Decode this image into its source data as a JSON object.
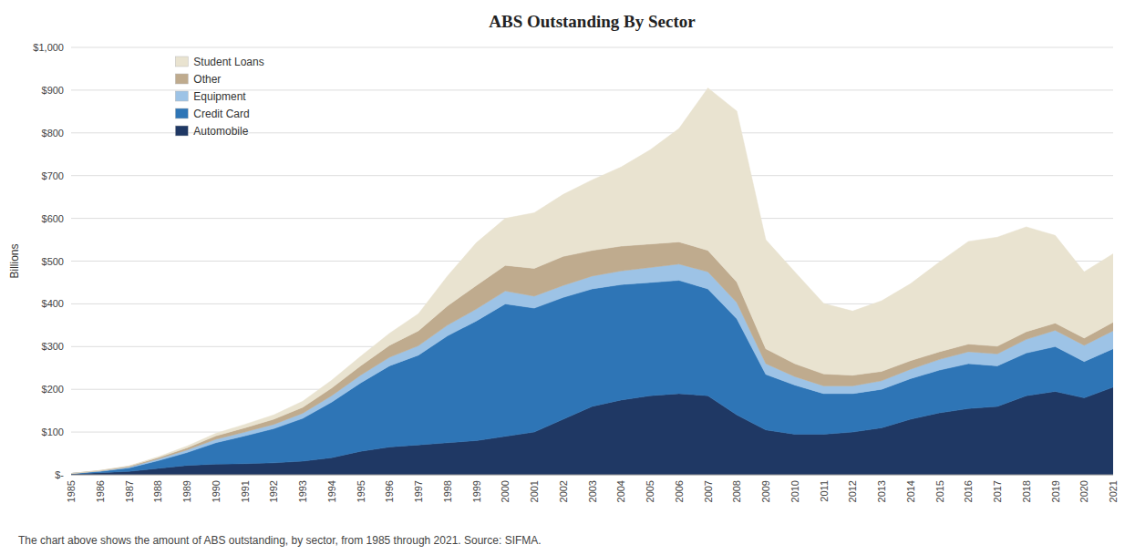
{
  "chart_data": {
    "type": "area",
    "stacked": true,
    "title": "ABS Outstanding By Sector",
    "subtitle": "The chart above shows the amount of ABS outstanding, by sector, from 1985 through 2021. Source: SIFMA.",
    "ylabel": "Billions",
    "x": [
      1985,
      1986,
      1987,
      1988,
      1989,
      1990,
      1991,
      1992,
      1993,
      1994,
      1995,
      1996,
      1997,
      1998,
      1999,
      2000,
      2001,
      2002,
      2003,
      2004,
      2005,
      2006,
      2007,
      2008,
      2009,
      2010,
      2011,
      2012,
      2013,
      2014,
      2015,
      2016,
      2017,
      2018,
      2019,
      2020,
      2021
    ],
    "series": [
      {
        "name": "Automobile",
        "color": "#1f3864",
        "values": [
          2,
          5,
          8,
          15,
          22,
          25,
          26,
          28,
          32,
          40,
          55,
          65,
          70,
          75,
          80,
          90,
          100,
          130,
          160,
          175,
          185,
          190,
          185,
          140,
          105,
          95,
          95,
          100,
          110,
          130,
          145,
          155,
          160,
          185,
          195,
          180,
          205
        ]
      },
      {
        "name": "Credit Card",
        "color": "#2e75b6",
        "values": [
          1,
          3,
          8,
          18,
          30,
          50,
          65,
          80,
          100,
          130,
          160,
          190,
          210,
          250,
          280,
          310,
          290,
          285,
          275,
          270,
          265,
          265,
          250,
          225,
          130,
          115,
          95,
          90,
          90,
          95,
          100,
          105,
          95,
          100,
          105,
          85,
          90
        ]
      },
      {
        "name": "Equipment",
        "color": "#9dc3e6",
        "values": [
          0,
          1,
          2,
          4,
          6,
          8,
          9,
          10,
          12,
          15,
          18,
          20,
          22,
          25,
          28,
          30,
          28,
          28,
          30,
          32,
          35,
          38,
          40,
          38,
          25,
          20,
          18,
          18,
          20,
          22,
          25,
          28,
          28,
          32,
          38,
          38,
          42
        ]
      },
      {
        "name": "Other",
        "color": "#bfab8e",
        "values": [
          0,
          1,
          2,
          3,
          5,
          8,
          10,
          12,
          14,
          18,
          22,
          28,
          35,
          45,
          55,
          60,
          65,
          68,
          60,
          58,
          55,
          52,
          50,
          48,
          35,
          30,
          28,
          25,
          22,
          20,
          18,
          18,
          18,
          18,
          17,
          17,
          20
        ]
      },
      {
        "name": "Student Loans",
        "color": "#e9e3d0",
        "values": [
          0,
          0,
          1,
          2,
          4,
          6,
          8,
          10,
          14,
          18,
          22,
          28,
          40,
          70,
          100,
          110,
          130,
          145,
          165,
          185,
          220,
          265,
          380,
          400,
          255,
          215,
          165,
          150,
          165,
          180,
          210,
          240,
          255,
          245,
          205,
          155,
          160
        ]
      }
    ],
    "xlim": [
      1985,
      2021
    ],
    "xticks": [
      1985,
      1986,
      1987,
      1988,
      1989,
      1990,
      1991,
      1992,
      1993,
      1994,
      1995,
      1996,
      1997,
      1998,
      1999,
      2000,
      2001,
      2002,
      2003,
      2004,
      2005,
      2006,
      2007,
      2008,
      2009,
      2010,
      2011,
      2012,
      2013,
      2014,
      2015,
      2016,
      2017,
      2018,
      2019,
      2020,
      2021
    ],
    "ylim": [
      0,
      1000
    ],
    "yticks": [
      {
        "value": 0,
        "label": "$-"
      },
      {
        "value": 100,
        "label": "$100"
      },
      {
        "value": 200,
        "label": "$200"
      },
      {
        "value": 300,
        "label": "$300"
      },
      {
        "value": 400,
        "label": "$400"
      },
      {
        "value": 500,
        "label": "$500"
      },
      {
        "value": 600,
        "label": "$600"
      },
      {
        "value": 700,
        "label": "$700"
      },
      {
        "value": 800,
        "label": "$800"
      },
      {
        "value": 900,
        "label": "$900"
      },
      {
        "value": 1000,
        "label": "$1,000"
      }
    ],
    "grid": true,
    "legend": "upper left"
  }
}
